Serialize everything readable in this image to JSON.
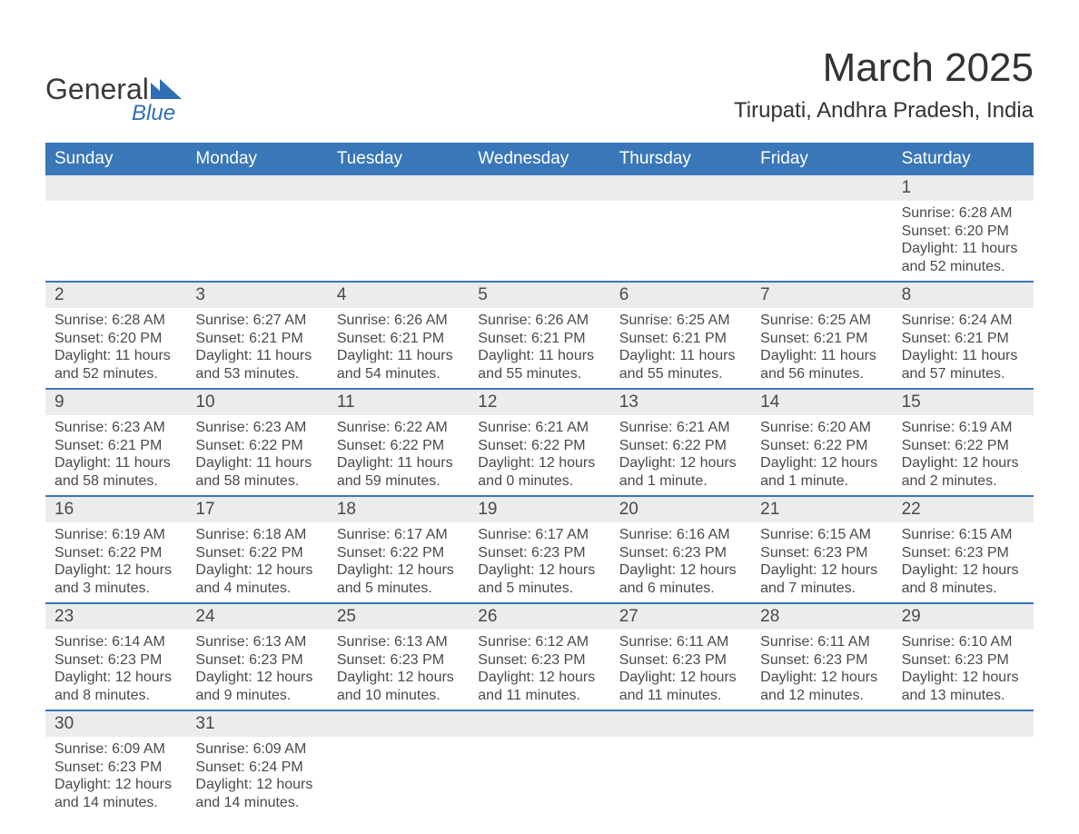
{
  "logo": {
    "word1": "General",
    "word2": "Blue"
  },
  "title": "March 2025",
  "subtitle": "Tirupati, Andhra Pradesh, India",
  "colors": {
    "header_bg": "#3a77b8",
    "header_text": "#ffffff",
    "daybar_bg": "#ececec",
    "text": "#4a4a4a",
    "row_border": "#3a77b8",
    "logo_blue": "#2e6fb5",
    "page_bg": "#ffffff"
  },
  "day_headers": [
    "Sunday",
    "Monday",
    "Tuesday",
    "Wednesday",
    "Thursday",
    "Friday",
    "Saturday"
  ],
  "weeks": [
    [
      {
        "n": "",
        "sr": "",
        "ss": "",
        "dl": ""
      },
      {
        "n": "",
        "sr": "",
        "ss": "",
        "dl": ""
      },
      {
        "n": "",
        "sr": "",
        "ss": "",
        "dl": ""
      },
      {
        "n": "",
        "sr": "",
        "ss": "",
        "dl": ""
      },
      {
        "n": "",
        "sr": "",
        "ss": "",
        "dl": ""
      },
      {
        "n": "",
        "sr": "",
        "ss": "",
        "dl": ""
      },
      {
        "n": "1",
        "sr": "Sunrise: 6:28 AM",
        "ss": "Sunset: 6:20 PM",
        "dl": "Daylight: 11 hours and 52 minutes."
      }
    ],
    [
      {
        "n": "2",
        "sr": "Sunrise: 6:28 AM",
        "ss": "Sunset: 6:20 PM",
        "dl": "Daylight: 11 hours and 52 minutes."
      },
      {
        "n": "3",
        "sr": "Sunrise: 6:27 AM",
        "ss": "Sunset: 6:21 PM",
        "dl": "Daylight: 11 hours and 53 minutes."
      },
      {
        "n": "4",
        "sr": "Sunrise: 6:26 AM",
        "ss": "Sunset: 6:21 PM",
        "dl": "Daylight: 11 hours and 54 minutes."
      },
      {
        "n": "5",
        "sr": "Sunrise: 6:26 AM",
        "ss": "Sunset: 6:21 PM",
        "dl": "Daylight: 11 hours and 55 minutes."
      },
      {
        "n": "6",
        "sr": "Sunrise: 6:25 AM",
        "ss": "Sunset: 6:21 PM",
        "dl": "Daylight: 11 hours and 55 minutes."
      },
      {
        "n": "7",
        "sr": "Sunrise: 6:25 AM",
        "ss": "Sunset: 6:21 PM",
        "dl": "Daylight: 11 hours and 56 minutes."
      },
      {
        "n": "8",
        "sr": "Sunrise: 6:24 AM",
        "ss": "Sunset: 6:21 PM",
        "dl": "Daylight: 11 hours and 57 minutes."
      }
    ],
    [
      {
        "n": "9",
        "sr": "Sunrise: 6:23 AM",
        "ss": "Sunset: 6:21 PM",
        "dl": "Daylight: 11 hours and 58 minutes."
      },
      {
        "n": "10",
        "sr": "Sunrise: 6:23 AM",
        "ss": "Sunset: 6:22 PM",
        "dl": "Daylight: 11 hours and 58 minutes."
      },
      {
        "n": "11",
        "sr": "Sunrise: 6:22 AM",
        "ss": "Sunset: 6:22 PM",
        "dl": "Daylight: 11 hours and 59 minutes."
      },
      {
        "n": "12",
        "sr": "Sunrise: 6:21 AM",
        "ss": "Sunset: 6:22 PM",
        "dl": "Daylight: 12 hours and 0 minutes."
      },
      {
        "n": "13",
        "sr": "Sunrise: 6:21 AM",
        "ss": "Sunset: 6:22 PM",
        "dl": "Daylight: 12 hours and 1 minute."
      },
      {
        "n": "14",
        "sr": "Sunrise: 6:20 AM",
        "ss": "Sunset: 6:22 PM",
        "dl": "Daylight: 12 hours and 1 minute."
      },
      {
        "n": "15",
        "sr": "Sunrise: 6:19 AM",
        "ss": "Sunset: 6:22 PM",
        "dl": "Daylight: 12 hours and 2 minutes."
      }
    ],
    [
      {
        "n": "16",
        "sr": "Sunrise: 6:19 AM",
        "ss": "Sunset: 6:22 PM",
        "dl": "Daylight: 12 hours and 3 minutes."
      },
      {
        "n": "17",
        "sr": "Sunrise: 6:18 AM",
        "ss": "Sunset: 6:22 PM",
        "dl": "Daylight: 12 hours and 4 minutes."
      },
      {
        "n": "18",
        "sr": "Sunrise: 6:17 AM",
        "ss": "Sunset: 6:22 PM",
        "dl": "Daylight: 12 hours and 5 minutes."
      },
      {
        "n": "19",
        "sr": "Sunrise: 6:17 AM",
        "ss": "Sunset: 6:23 PM",
        "dl": "Daylight: 12 hours and 5 minutes."
      },
      {
        "n": "20",
        "sr": "Sunrise: 6:16 AM",
        "ss": "Sunset: 6:23 PM",
        "dl": "Daylight: 12 hours and 6 minutes."
      },
      {
        "n": "21",
        "sr": "Sunrise: 6:15 AM",
        "ss": "Sunset: 6:23 PM",
        "dl": "Daylight: 12 hours and 7 minutes."
      },
      {
        "n": "22",
        "sr": "Sunrise: 6:15 AM",
        "ss": "Sunset: 6:23 PM",
        "dl": "Daylight: 12 hours and 8 minutes."
      }
    ],
    [
      {
        "n": "23",
        "sr": "Sunrise: 6:14 AM",
        "ss": "Sunset: 6:23 PM",
        "dl": "Daylight: 12 hours and 8 minutes."
      },
      {
        "n": "24",
        "sr": "Sunrise: 6:13 AM",
        "ss": "Sunset: 6:23 PM",
        "dl": "Daylight: 12 hours and 9 minutes."
      },
      {
        "n": "25",
        "sr": "Sunrise: 6:13 AM",
        "ss": "Sunset: 6:23 PM",
        "dl": "Daylight: 12 hours and 10 minutes."
      },
      {
        "n": "26",
        "sr": "Sunrise: 6:12 AM",
        "ss": "Sunset: 6:23 PM",
        "dl": "Daylight: 12 hours and 11 minutes."
      },
      {
        "n": "27",
        "sr": "Sunrise: 6:11 AM",
        "ss": "Sunset: 6:23 PM",
        "dl": "Daylight: 12 hours and 11 minutes."
      },
      {
        "n": "28",
        "sr": "Sunrise: 6:11 AM",
        "ss": "Sunset: 6:23 PM",
        "dl": "Daylight: 12 hours and 12 minutes."
      },
      {
        "n": "29",
        "sr": "Sunrise: 6:10 AM",
        "ss": "Sunset: 6:23 PM",
        "dl": "Daylight: 12 hours and 13 minutes."
      }
    ],
    [
      {
        "n": "30",
        "sr": "Sunrise: 6:09 AM",
        "ss": "Sunset: 6:23 PM",
        "dl": "Daylight: 12 hours and 14 minutes."
      },
      {
        "n": "31",
        "sr": "Sunrise: 6:09 AM",
        "ss": "Sunset: 6:24 PM",
        "dl": "Daylight: 12 hours and 14 minutes."
      },
      {
        "n": "",
        "sr": "",
        "ss": "",
        "dl": ""
      },
      {
        "n": "",
        "sr": "",
        "ss": "",
        "dl": ""
      },
      {
        "n": "",
        "sr": "",
        "ss": "",
        "dl": ""
      },
      {
        "n": "",
        "sr": "",
        "ss": "",
        "dl": ""
      },
      {
        "n": "",
        "sr": "",
        "ss": "",
        "dl": ""
      }
    ]
  ]
}
